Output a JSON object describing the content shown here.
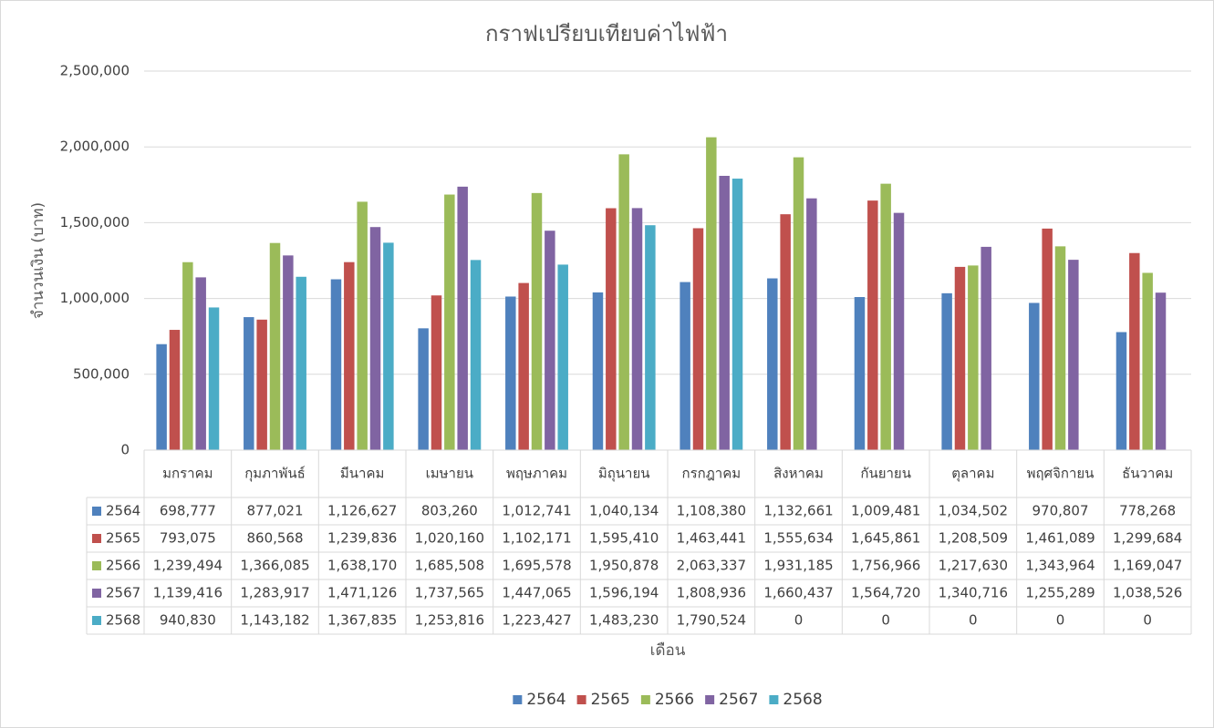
{
  "chart_data": {
    "type": "bar",
    "title": "กราฟเปรียบเทียบค่าไฟฟ้า",
    "x_label": "เดือน",
    "y_label": "จำนวนเงิน (บาท)",
    "categories": [
      "มกราคม",
      "กุมภาพันธ์",
      "มีนาคม",
      "เมษายน",
      "พฤษภาคม",
      "มิถุนายน",
      "กรกฎาคม",
      "สิงหาคม",
      "กันยายน",
      "ตุลาคม",
      "พฤศจิกายน",
      "ธันวาคม"
    ],
    "series": [
      {
        "name": "2564",
        "color": "#4f81bd",
        "values": [
          698777,
          877021,
          1126627,
          803260,
          1012741,
          1040134,
          1108380,
          1132661,
          1009481,
          1034502,
          970807,
          778268
        ],
        "value_labels": [
          "698,777",
          "877,021",
          "1,126,627",
          "803,260",
          "1,012,741",
          "1,040,134",
          "1,108,380",
          "1,132,661",
          "1,009,481",
          "1,034,502",
          "970,807",
          "778,268"
        ]
      },
      {
        "name": "2565",
        "color": "#c0504d",
        "values": [
          793075,
          860568,
          1239836,
          1020160,
          1102171,
          1595410,
          1463441,
          1555634,
          1645861,
          1208509,
          1461089,
          1299684
        ],
        "value_labels": [
          "793,075",
          "860,568",
          "1,239,836",
          "1,020,160",
          "1,102,171",
          "1,595,410",
          "1,463,441",
          "1,555,634",
          "1,645,861",
          "1,208,509",
          "1,461,089",
          "1,299,684"
        ]
      },
      {
        "name": "2566",
        "color": "#9bbb59",
        "values": [
          1239494,
          1366085,
          1638170,
          1685508,
          1695578,
          1950878,
          2063337,
          1931185,
          1756966,
          1217630,
          1343964,
          1169047
        ],
        "value_labels": [
          "1,239,494",
          "1,366,085",
          "1,638,170",
          "1,685,508",
          "1,695,578",
          "1,950,878",
          "2,063,337",
          "1,931,185",
          "1,756,966",
          "1,217,630",
          "1,343,964",
          "1,169,047"
        ]
      },
      {
        "name": "2567",
        "color": "#8064a2",
        "values": [
          1139416,
          1283917,
          1471126,
          1737565,
          1447065,
          1596194,
          1808936,
          1660437,
          1564720,
          1340716,
          1255289,
          1038526
        ],
        "value_labels": [
          "1,139,416",
          "1,283,917",
          "1,471,126",
          "1,737,565",
          "1,447,065",
          "1,596,194",
          "1,808,936",
          "1,660,437",
          "1,564,720",
          "1,340,716",
          "1,255,289",
          "1,038,526"
        ]
      },
      {
        "name": "2568",
        "color": "#4bacc6",
        "values": [
          940830,
          1143182,
          1367835,
          1253816,
          1223427,
          1483230,
          1790524,
          0,
          0,
          0,
          0,
          0
        ],
        "value_labels": [
          "940,830",
          "1,143,182",
          "1,367,835",
          "1,253,816",
          "1,223,427",
          "1,483,230",
          "1,790,524",
          "0",
          "0",
          "0",
          "0",
          "0"
        ]
      }
    ],
    "ylim": [
      0,
      2500000
    ],
    "yticks": [
      0,
      {
        "value": 500000,
        "label": "500,000"
      },
      {
        "value": 1000000,
        "label": "1,000,000"
      },
      {
        "value": 1500000,
        "label": "1,500,000"
      },
      {
        "value": 2000000,
        "label": "2,000,000"
      },
      {
        "value": 2500000,
        "label": "2,500,000"
      }
    ],
    "grid": true,
    "data_table": true,
    "legend": "bottom"
  }
}
